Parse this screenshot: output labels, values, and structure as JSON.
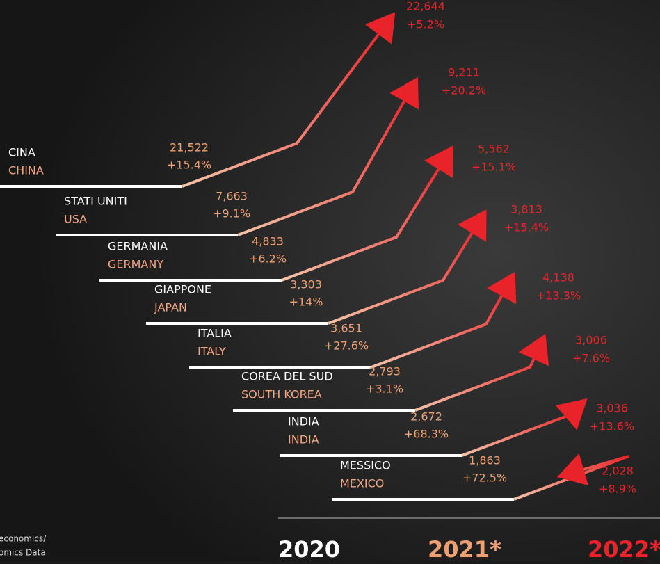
{
  "rows": [
    {
      "name": "CINA",
      "name_en": "CHINA",
      "v2020": "21,522",
      "g2020": "+15.4%",
      "v2021": "22,644",
      "g2021": "+5.2%"
    },
    {
      "name": "STATI UNITI",
      "name_en": "USA",
      "v2020": "7,663",
      "g2020": "+9.1%",
      "v2021": "9,211",
      "g2021": "+20.2%"
    },
    {
      "name": "GERMANIA",
      "name_en": "GERMANY",
      "v2020": "4,833",
      "g2020": "+6.2%",
      "v2021": "5,562",
      "g2021": "+15.1%"
    },
    {
      "name": "GIAPPONE",
      "name_en": "JAPAN",
      "v2020": "3,303",
      "g2020": "+14%",
      "v2021": "3,813",
      "g2021": "+15.4%"
    },
    {
      "name": "ITALIA",
      "name_en": "ITALY",
      "v2020": "3,651",
      "g2020": "+27.6%",
      "v2021": "4,138",
      "g2021": "+13.3%"
    },
    {
      "name": "COREA DEL SUD",
      "name_en": "SOUTH KOREA",
      "v2020": "2,793",
      "g2020": "+3.1%",
      "v2021": "3,006",
      "g2021": "+7.6%"
    },
    {
      "name": "INDIA",
      "name_en": "INDIA",
      "v2020": "2,672",
      "g2020": "+68.3%",
      "v2021": "3,036",
      "g2021": "+13.6%"
    },
    {
      "name": "MESSICO",
      "name_en": "MEXICO",
      "v2020": "1,863",
      "g2020": "+72.5%",
      "v2021": "2,028",
      "g2021": "+8.9%"
    }
  ],
  "years": [
    "2020",
    "2021*",
    "2022*"
  ],
  "source": [
    "economics/",
    "omics Data"
  ]
}
